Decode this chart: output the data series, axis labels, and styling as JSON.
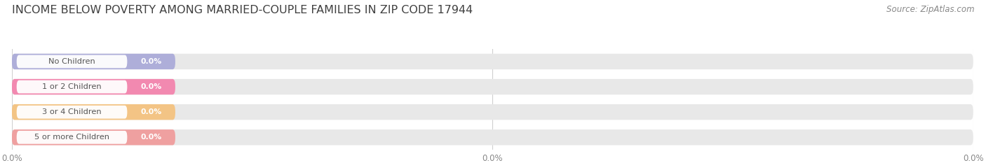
{
  "title": "INCOME BELOW POVERTY AMONG MARRIED-COUPLE FAMILIES IN ZIP CODE 17944",
  "source": "Source: ZipAtlas.com",
  "categories": [
    "No Children",
    "1 or 2 Children",
    "3 or 4 Children",
    "5 or more Children"
  ],
  "values": [
    0.0,
    0.0,
    0.0,
    0.0
  ],
  "bar_colors": [
    "#a8a8d8",
    "#f47faa",
    "#f5c07a",
    "#f09898"
  ],
  "bar_bg_color": "#e8e8e8",
  "white_pill_color": "#ffffff",
  "title_fontsize": 11.5,
  "source_fontsize": 8.5,
  "background_color": "#ffffff",
  "value_label_color": "#ffffff",
  "category_label_color": "#555555",
  "xtick_color": "#888888",
  "grid_color": "#d0d0d0"
}
